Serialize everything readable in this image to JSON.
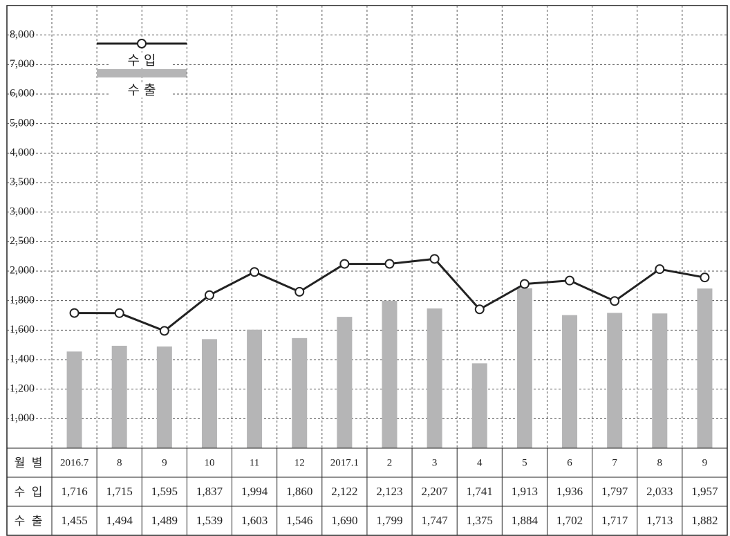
{
  "chart_data": {
    "type": "bar-line",
    "x_label": "월 별",
    "categories": [
      "2016.7",
      "8",
      "9",
      "10",
      "11",
      "12",
      "2017.1",
      "2",
      "3",
      "4",
      "5",
      "6",
      "7",
      "8",
      "9"
    ],
    "series": [
      {
        "name": "수 입",
        "type": "line",
        "color": "#222222",
        "values": [
          1716,
          1715,
          1595,
          1837,
          1994,
          1860,
          2122,
          2123,
          2207,
          1741,
          1913,
          1936,
          1797,
          2033,
          1957
        ],
        "value_labels": [
          "1,716",
          "1,715",
          "1,595",
          "1,837",
          "1,994",
          "1,860",
          "2,122",
          "2,123",
          "2,207",
          "1,741",
          "1,913",
          "1,936",
          "1,797",
          "2,033",
          "1,957"
        ]
      },
      {
        "name": "수 출",
        "type": "bar",
        "color": "#b5b5b6",
        "values": [
          1455,
          1494,
          1489,
          1539,
          1603,
          1546,
          1690,
          1799,
          1747,
          1375,
          1884,
          1702,
          1717,
          1713,
          1882
        ],
        "value_labels": [
          "1,455",
          "1,494",
          "1,489",
          "1,539",
          "1,603",
          "1,546",
          "1,690",
          "1,799",
          "1,747",
          "1,375",
          "1,884",
          "1,702",
          "1,717",
          "1,713",
          "1,882"
        ]
      }
    ],
    "ylim": [
      800,
      9000
    ],
    "yticks": [
      {
        "value": 1000,
        "label": "1,000"
      },
      {
        "value": 1200,
        "label": "1,200"
      },
      {
        "value": 1400,
        "label": "1,400"
      },
      {
        "value": 1600,
        "label": "1,600"
      },
      {
        "value": 1800,
        "label": "1,800"
      },
      {
        "value": 2000,
        "label": "2,000"
      },
      {
        "value": 2500,
        "label": "2,500"
      },
      {
        "value": 3000,
        "label": "3,000"
      },
      {
        "value": 3500,
        "label": "3,500"
      },
      {
        "value": 4000,
        "label": "4,000"
      },
      {
        "value": 5000,
        "label": "5,000"
      },
      {
        "value": 6000,
        "label": "6,000"
      },
      {
        "value": 7000,
        "label": "7,000"
      },
      {
        "value": 8000,
        "label": "8,000"
      }
    ],
    "grid": true
  }
}
